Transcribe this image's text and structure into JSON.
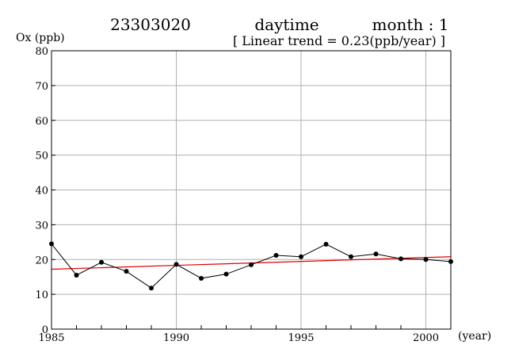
{
  "header": {
    "station": "23303020",
    "period": "daytime",
    "month": "month : 1",
    "trend_note": "[ Linear trend = 0.23(ppb/year) ]"
  },
  "chart_data": {
    "type": "line",
    "ylabel": "Ox (ppb)",
    "xlabel": "(year)",
    "xlim": [
      1985,
      2001
    ],
    "ylim": [
      0,
      80
    ],
    "x_ticks": [
      1985,
      1990,
      1995,
      2000
    ],
    "y_ticks": [
      0,
      10,
      20,
      30,
      40,
      50,
      60,
      70,
      80
    ],
    "grid": true,
    "series": [
      {
        "x": [
          1985,
          1986,
          1987,
          1988,
          1989,
          1990,
          1991,
          1992,
          1993,
          1994,
          1995,
          1996,
          1997,
          1998,
          1999,
          2000,
          2001
        ],
        "values": [
          24.5,
          15.5,
          19.2,
          16.6,
          11.8,
          18.6,
          14.6,
          15.8,
          18.5,
          21.2,
          20.8,
          24.4,
          20.8,
          21.6,
          20.2,
          20.0,
          19.4
        ]
      }
    ],
    "trend": {
      "slope": 0.23,
      "x": [
        1985,
        2001
      ],
      "y": [
        17.2,
        20.8
      ],
      "color": "#e00000"
    }
  }
}
